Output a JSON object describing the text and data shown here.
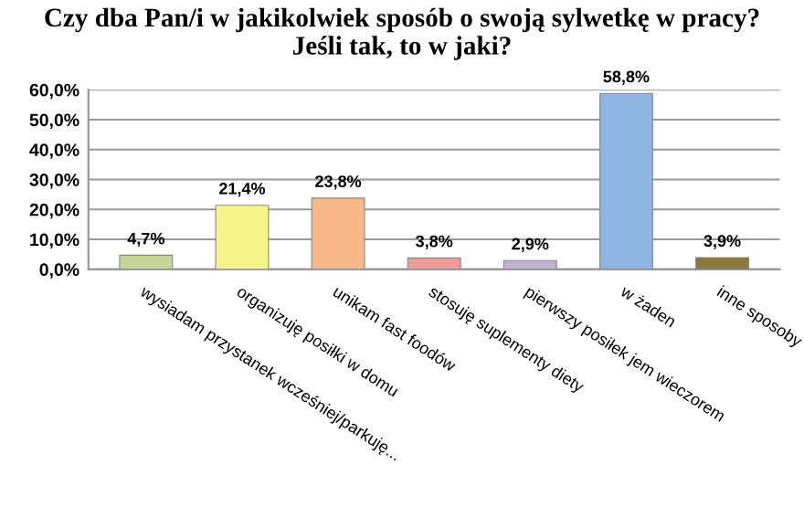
{
  "chart_data": {
    "type": "bar",
    "title": "Czy dba Pan/i w jakikolwiek sposób o swoją sylwetkę w pracy?\nJeśli tak, to w jaki?",
    "categories": [
      "wysiadam przystanek wcześniej/parkuję...",
      "organizuję posiłki w domu",
      "unikam fast foodów",
      "stosuję suplementy diety",
      "pierwszy posiłek jem wieczorem",
      "w żaden",
      "inne sposoby"
    ],
    "values": [
      4.7,
      21.4,
      23.8,
      3.8,
      2.9,
      58.8,
      3.9
    ],
    "value_labels": [
      "4,7%",
      "21,4%",
      "23,8%",
      "3,8%",
      "2,9%",
      "58,8%",
      "3,9%"
    ],
    "colors": [
      "#c6d69a",
      "#f5f58a",
      "#f8b98a",
      "#f09a9a",
      "#c0b0cc",
      "#8db4e2",
      "#8c7a3c"
    ],
    "ylim": [
      0,
      60
    ],
    "yticks": [
      {
        "value": 0,
        "label": "0,0%"
      },
      {
        "value": 10,
        "label": "10,0%"
      },
      {
        "value": 20,
        "label": "20,0%"
      },
      {
        "value": 30,
        "label": "30,0%"
      },
      {
        "value": 40,
        "label": "40,0%"
      },
      {
        "value": 50,
        "label": "50,0%"
      },
      {
        "value": 60,
        "label": "60,0%"
      }
    ],
    "grid": "y"
  }
}
